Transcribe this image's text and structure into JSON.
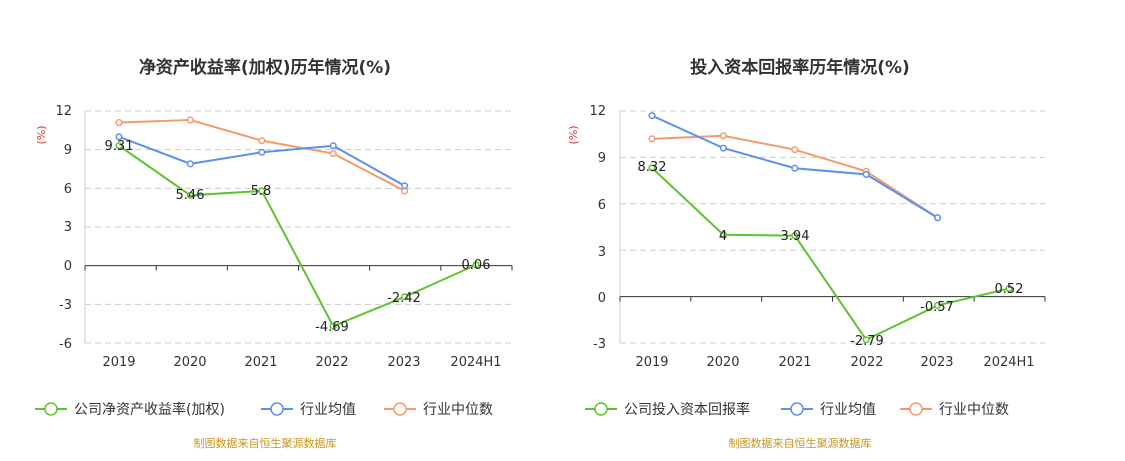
{
  "charts": [
    {
      "title": "净资产收益率(加权)历年情况(%)",
      "ylabel": "(%)",
      "source": "制图数据来自恒生聚源数据库",
      "yticks": [
        "12",
        "9",
        "6",
        "3",
        "0",
        "-3",
        "-6"
      ],
      "legend": [
        "公司净资产收益率(加权)",
        "行业均值",
        "行业中位数"
      ],
      "point_labels": [
        "9.31",
        "5.46",
        "5.8",
        "-4.69",
        "-2.42",
        "0.06"
      ]
    },
    {
      "title": "投入资本回报率历年情况(%)",
      "ylabel": "(%)",
      "source": "制图数据来自恒生聚源数据库",
      "yticks": [
        "12",
        "9",
        "6",
        "3",
        "0",
        "-3"
      ],
      "legend": [
        "公司投入资本回报率",
        "行业均值",
        "行业中位数"
      ],
      "point_labels": [
        "8.32",
        "4",
        "3.94",
        "-2.79",
        "-0.57",
        "0.52"
      ]
    }
  ],
  "chart_data": [
    {
      "type": "line",
      "title": "净资产收益率(加权)历年情况(%)",
      "ylabel": "(%)",
      "categories": [
        "2019",
        "2020",
        "2021",
        "2022",
        "2023",
        "2024H1"
      ],
      "ylim": [
        -6,
        12
      ],
      "yticks": [
        12,
        9,
        6,
        3,
        0,
        -3,
        -6
      ],
      "grid": true,
      "legend_position": "bottom",
      "series": [
        {
          "name": "公司净资产收益率(加权)",
          "color": "#5cc430",
          "values": [
            9.31,
            5.46,
            5.8,
            -4.69,
            -2.42,
            0.06
          ],
          "show_labels": true
        },
        {
          "name": "行业均值",
          "color": "#5b8ff0",
          "values": [
            10.0,
            7.9,
            8.8,
            9.3,
            6.2,
            null
          ]
        },
        {
          "name": "行业中位数",
          "color": "#f59a6e",
          "values": [
            11.1,
            11.3,
            9.7,
            8.7,
            5.8,
            null
          ]
        }
      ]
    },
    {
      "type": "line",
      "title": "投入资本回报率历年情况(%)",
      "ylabel": "(%)",
      "categories": [
        "2019",
        "2020",
        "2021",
        "2022",
        "2023",
        "2024H1"
      ],
      "ylim": [
        -3,
        12
      ],
      "yticks": [
        12,
        9,
        6,
        3,
        0,
        -3
      ],
      "grid": true,
      "legend_position": "bottom",
      "series": [
        {
          "name": "公司投入资本回报率",
          "color": "#5cc430",
          "values": [
            8.32,
            4,
            3.94,
            -2.79,
            -0.57,
            0.52
          ],
          "show_labels": true
        },
        {
          "name": "行业均值",
          "color": "#5b8ff0",
          "values": [
            11.7,
            9.6,
            8.3,
            7.9,
            5.1,
            null
          ]
        },
        {
          "name": "行业中位数",
          "color": "#f59a6e",
          "values": [
            10.2,
            10.4,
            9.5,
            8.1,
            5.1,
            null
          ]
        }
      ]
    }
  ]
}
